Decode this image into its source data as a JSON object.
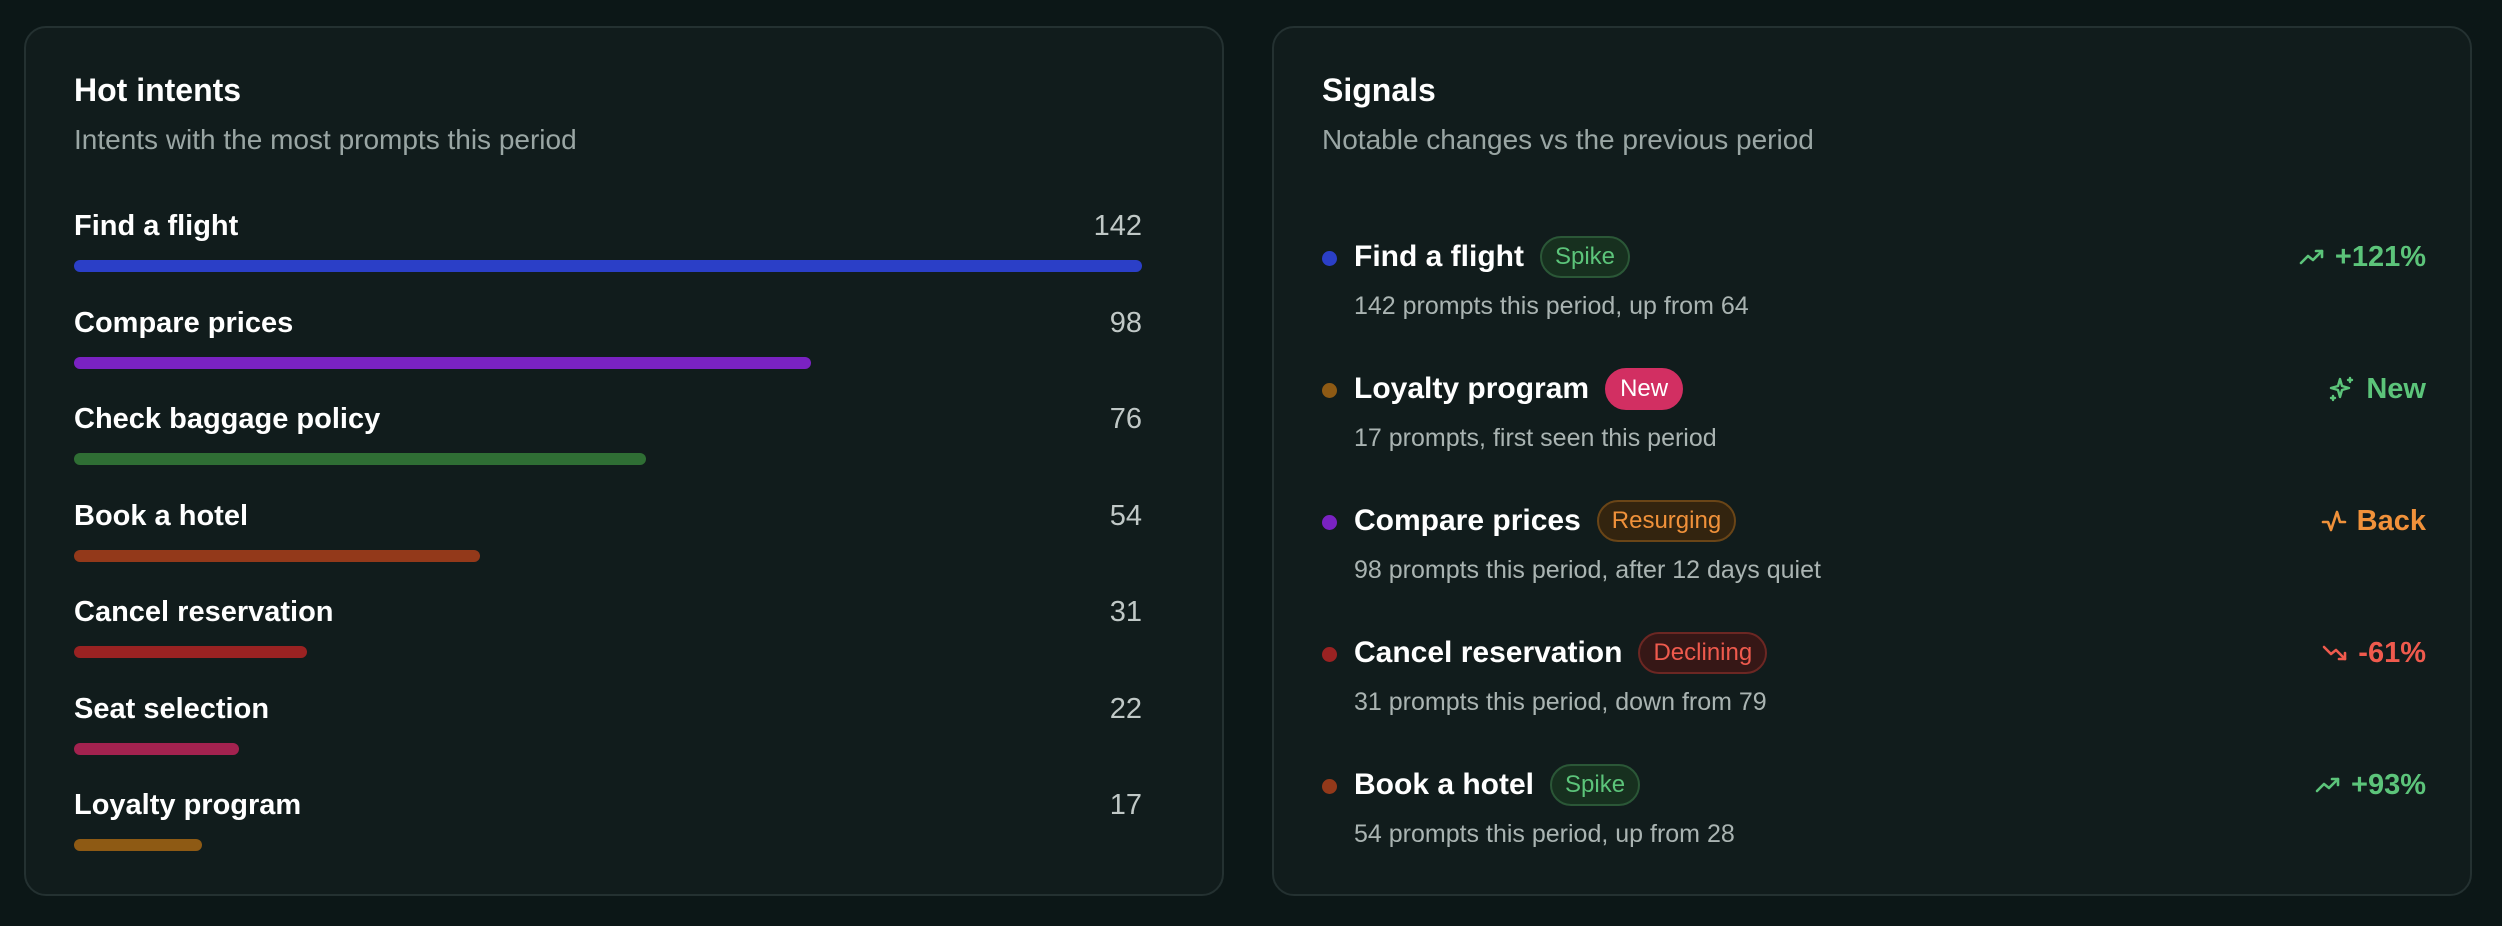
{
  "hot_intents": {
    "title": "Hot intents",
    "subtitle": "Intents with the most prompts this period",
    "max": 142,
    "items": [
      {
        "name": "Find a flight",
        "count": "142",
        "value": 142,
        "color": "#2b3fc7"
      },
      {
        "name": "Compare prices",
        "count": "98",
        "value": 98,
        "color": "#7a22c2"
      },
      {
        "name": "Check baggage policy",
        "count": "76",
        "value": 76,
        "color": "#2f6e34"
      },
      {
        "name": "Book a hotel",
        "count": "54",
        "value": 54,
        "color": "#93391a"
      },
      {
        "name": "Cancel reservation",
        "count": "31",
        "value": 31,
        "color": "#9a2222"
      },
      {
        "name": "Seat selection",
        "count": "22",
        "value": 22,
        "color": "#a3224f"
      },
      {
        "name": "Loyalty program",
        "count": "17",
        "value": 17,
        "color": "#8e5a14"
      }
    ]
  },
  "signals": {
    "title": "Signals",
    "subtitle": "Notable changes vs the previous period",
    "items": [
      {
        "name": "Find a flight",
        "dot_color": "#2b3fc7",
        "badge": "Spike",
        "badge_type": "spike",
        "description": "142 prompts this period, up from 64",
        "change": "+121%",
        "change_icon": "trend-up-icon",
        "change_type": "up"
      },
      {
        "name": "Loyalty program",
        "dot_color": "#8e5a14",
        "badge": "New",
        "badge_type": "new",
        "description": "17 prompts, first seen this period",
        "change": "New",
        "change_icon": "sparkle-icon",
        "change_type": "new"
      },
      {
        "name": "Compare prices",
        "dot_color": "#7a22c2",
        "badge": "Resurging",
        "badge_type": "resurging",
        "description": "98 prompts this period, after 12 days quiet",
        "change": "Back",
        "change_icon": "activity-icon",
        "change_type": "back"
      },
      {
        "name": "Cancel reservation",
        "dot_color": "#9a2222",
        "badge": "Declining",
        "badge_type": "declining",
        "description": "31 prompts this period, down from 79",
        "change": "-61%",
        "change_icon": "trend-down-icon",
        "change_type": "down"
      },
      {
        "name": "Book a hotel",
        "dot_color": "#93391a",
        "badge": "Spike",
        "badge_type": "spike",
        "description": "54 prompts this period, up from 28",
        "change": "+93%",
        "change_icon": "trend-up-icon",
        "change_type": "up"
      }
    ]
  }
}
